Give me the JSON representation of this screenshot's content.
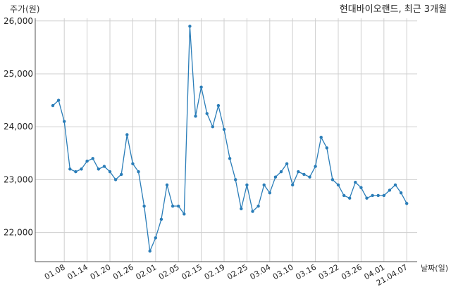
{
  "chart_data": {
    "type": "line",
    "title": "현대바이오랜드, 최근 3개월",
    "ylabel": "주가(원)",
    "xlabel": "날짜(일)",
    "ylim": [
      21450,
      26050
    ],
    "yticks": [
      22000,
      23000,
      24000,
      25000,
      26000
    ],
    "ytick_labels": [
      "22,000",
      "23,000",
      "24,000",
      "25,000",
      "26,000"
    ],
    "grid": true,
    "line_color": "#2a7db8",
    "grid_color": "#cfcfcf",
    "xtick_labels": [
      "01.08",
      "01.14",
      "01.20",
      "01.26",
      "02.01",
      "02.05",
      "02.15",
      "02.19",
      "02.25",
      "03.04",
      "03.10",
      "03.16",
      "03.22",
      "03.26",
      "04.01",
      "21.04.07"
    ],
    "xtick_index": [
      2,
      6,
      10,
      14,
      18,
      22,
      26,
      30,
      34,
      38,
      42,
      46,
      50,
      54,
      58,
      62
    ],
    "series": [
      {
        "values": [
          24400,
          24500,
          24100,
          23200,
          23150,
          23200,
          23350,
          23400,
          23200,
          23250,
          23150,
          23000,
          23100,
          23850,
          23300,
          23150,
          22500,
          21650,
          21900,
          22250,
          22900,
          22500,
          22500,
          22350,
          25900,
          24200,
          24750,
          24250,
          24000,
          24400,
          23950,
          23400,
          23000,
          22450,
          22900,
          22400,
          22500,
          22900,
          22750,
          23050,
          23150,
          23300,
          22900,
          23150,
          23100,
          23050,
          23250,
          23800,
          23600,
          23000,
          22900,
          22700,
          22650,
          22950,
          22850,
          22650,
          22700,
          22700,
          22700,
          22800,
          22900,
          22750,
          22550
        ]
      }
    ]
  }
}
